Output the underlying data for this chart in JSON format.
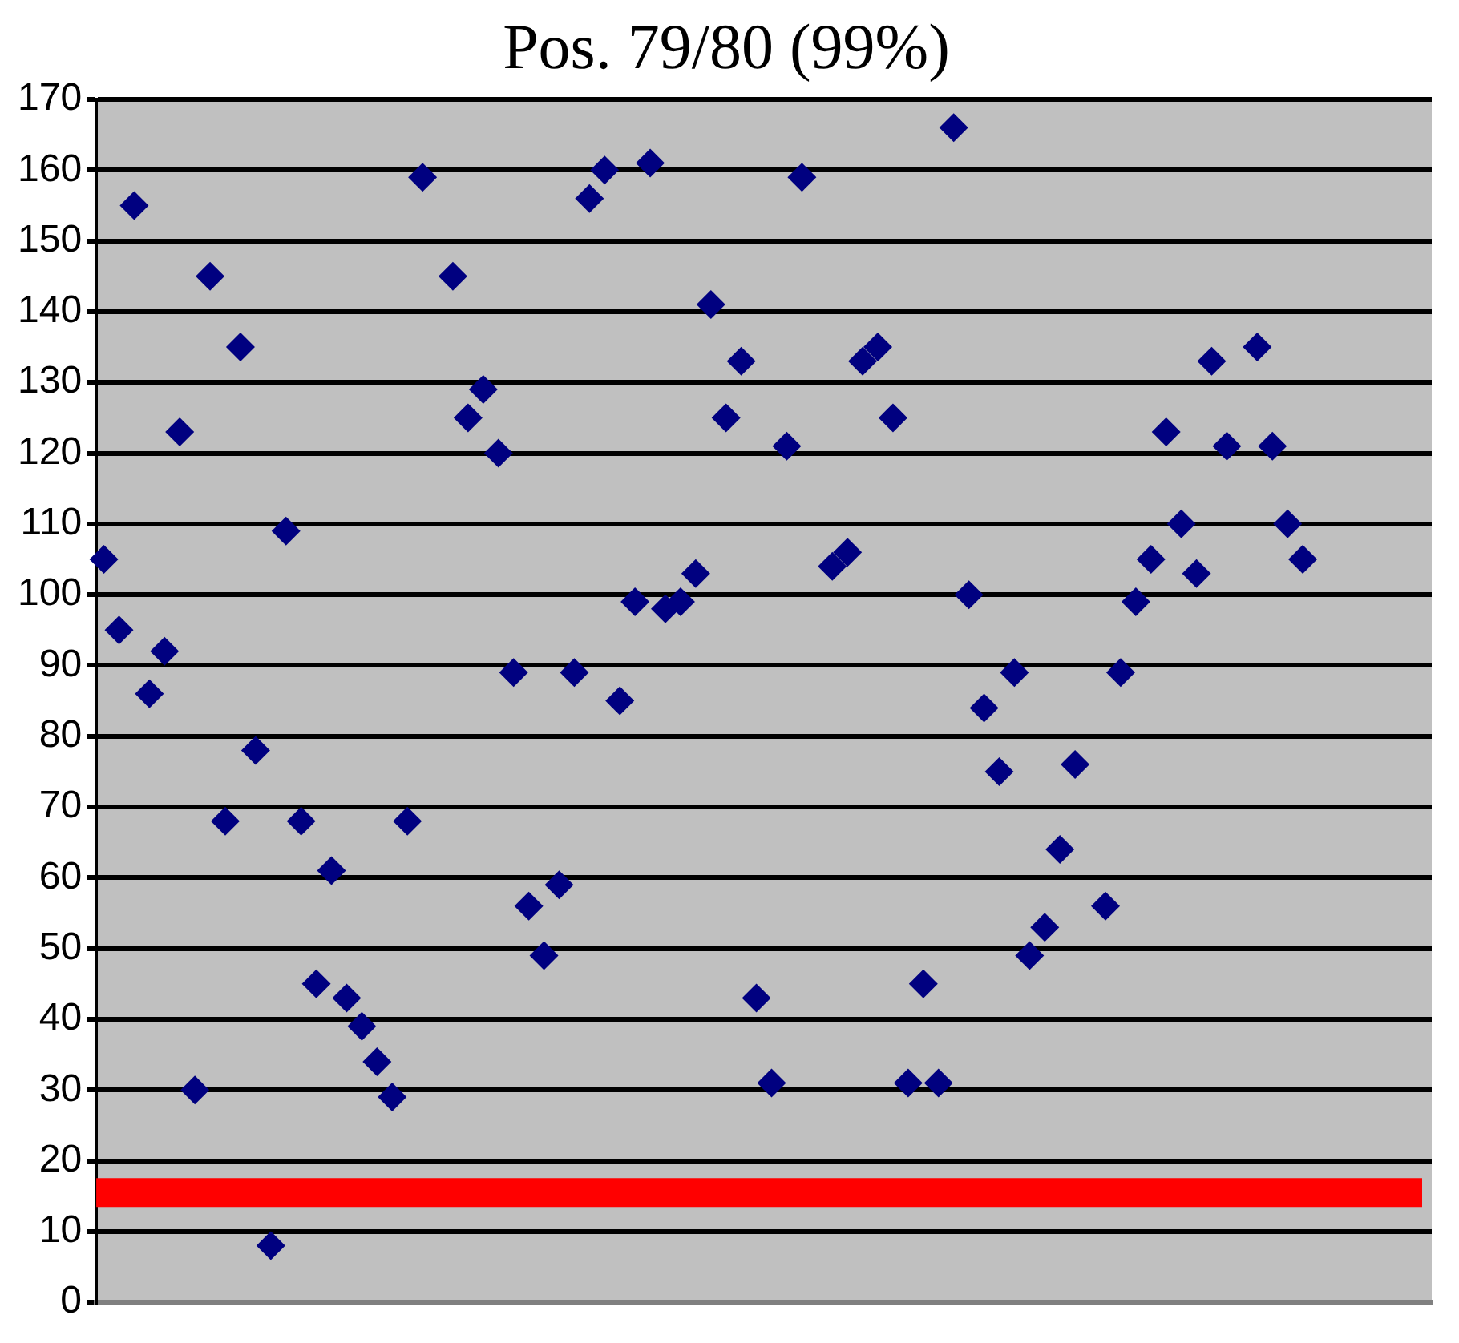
{
  "chart_data": {
    "type": "scatter",
    "title": "Pos. 79/80 (99%)",
    "categories": [
      null,
      null,
      null,
      null,
      null,
      null,
      null,
      null,
      null,
      null,
      null,
      null,
      null,
      null,
      null,
      null,
      null,
      null,
      null,
      null,
      null,
      null,
      null,
      null,
      null,
      null,
      null,
      null,
      null,
      null,
      null,
      null,
      null,
      null,
      null,
      null,
      null,
      null,
      null,
      null,
      null,
      null,
      null,
      null,
      null,
      null,
      null,
      null,
      null,
      null,
      null,
      null,
      null,
      null,
      null,
      null,
      null,
      null,
      null,
      null,
      null,
      null,
      null,
      null,
      null,
      null,
      null,
      null,
      null,
      null,
      null,
      null,
      null,
      null,
      null,
      null,
      null,
      null,
      null,
      null,
      null,
      null,
      null,
      null,
      null,
      null,
      null,
      null
    ],
    "values": [
      105,
      95,
      155,
      86,
      92,
      123,
      30,
      145,
      68,
      135,
      78,
      8,
      109,
      68,
      45,
      61,
      43,
      39,
      34,
      29,
      68,
      159,
      null,
      145,
      125,
      129,
      120,
      89,
      56,
      49,
      59,
      89,
      156,
      160,
      85,
      99,
      161,
      98,
      99,
      103,
      141,
      125,
      133,
      43,
      31,
      121,
      159,
      null,
      104,
      106,
      133,
      135,
      125,
      31,
      45,
      31,
      166,
      100,
      84,
      75,
      89,
      49,
      53,
      64,
      76,
      null,
      56,
      89,
      99,
      105,
      123,
      110,
      103,
      133,
      121,
      null,
      135,
      121,
      110,
      105,
      null,
      null,
      null,
      null,
      null,
      null,
      null,
      null
    ],
    "color": "#000080",
    "marker": "diamond",
    "ylim": [
      0,
      170
    ],
    "yticks": [
      0,
      10,
      20,
      30,
      40,
      50,
      60,
      70,
      80,
      90,
      100,
      110,
      120,
      130,
      140,
      150,
      160,
      170
    ],
    "grid": "y",
    "ref_lines": [
      {
        "axis": "y",
        "value": 15.5,
        "color": "#ff0000"
      }
    ]
  }
}
